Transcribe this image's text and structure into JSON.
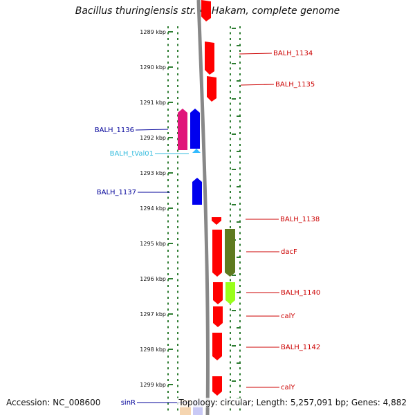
{
  "title": "Bacillus thuringiensis str. Al Hakam, complete genome",
  "accession": "Accession: NC_008600",
  "topology": "Topology: circular; Length: 5,257,091 bp; Genes: 4,882",
  "kbp_ticks": [
    "1289 kbp",
    "1290 kbp",
    "1291 kbp",
    "1292 kbp",
    "1293 kbp",
    "1294 kbp",
    "1295 kbp",
    "1296 kbp",
    "1297 kbp",
    "1298 kbp",
    "1299 kbp"
  ],
  "colors": {
    "red": "#ff0000",
    "blue": "#0000ee",
    "magenta": "#e0157a",
    "cyan": "#33bbff",
    "olive": "#5e7a1f",
    "lime": "#99ff1a",
    "dots": "#2e7d32",
    "label_red": "#cc0000",
    "label_blue": "#000099",
    "label_cyan": "#33bbdd"
  },
  "labels_left": [
    {
      "text": "BALH_1136",
      "color": "label_blue"
    },
    {
      "text": "BALH_tVal01",
      "color": "label_cyan"
    },
    {
      "text": "BALH_1137",
      "color": "label_blue"
    },
    {
      "text": "sinR",
      "color": "label_blue"
    }
  ],
  "labels_right": [
    {
      "text": "BALH_1134"
    },
    {
      "text": "BALH_1135"
    },
    {
      "text": "BALH_1138"
    },
    {
      "text": "dacF"
    },
    {
      "text": "BALH_1140"
    },
    {
      "text": "calY"
    },
    {
      "text": "BALH_1142"
    },
    {
      "text": "calY"
    }
  ]
}
